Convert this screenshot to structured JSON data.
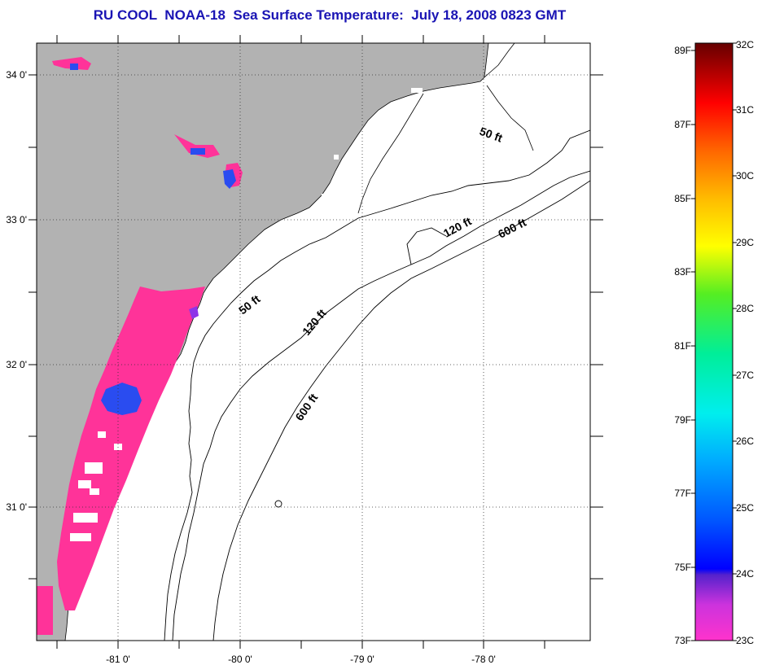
{
  "title": "RU COOL  NOAA-18  Sea Surface Temperature:  July 18, 2008 0823 GMT",
  "map": {
    "longitude_ticks": [
      "-81 0'",
      "-80 0'",
      "-79 0'",
      "-78 0'"
    ],
    "latitude_ticks": [
      "34 0'",
      "33 0'",
      "32 0'",
      "31 0'"
    ],
    "grid": "dotted",
    "land_color": "#b2b2b2",
    "ocean_color": "#ffffff",
    "contours": [
      {
        "depth": "50 ft",
        "labels": [
          "50 ft",
          "50 ft"
        ]
      },
      {
        "depth": "120 ft",
        "labels": [
          "120 ft",
          "120 ft"
        ]
      },
      {
        "depth": "600 ft",
        "labels": [
          "600 ft",
          "600 ft"
        ]
      }
    ],
    "sst_colors": {
      "cool": "#ff3399",
      "coldest": "#2a4cf0",
      "mid": "#9a30e0"
    }
  },
  "colorbar": {
    "fahrenheit_labels": [
      "89F",
      "87F",
      "85F",
      "83F",
      "81F",
      "79F",
      "77F",
      "75F",
      "73F"
    ],
    "celsius_labels": [
      "32C",
      "31C",
      "30C",
      "29C",
      "28C",
      "27C",
      "26C",
      "25C",
      "24C",
      "23C"
    ],
    "range_celsius": [
      23,
      32
    ]
  }
}
